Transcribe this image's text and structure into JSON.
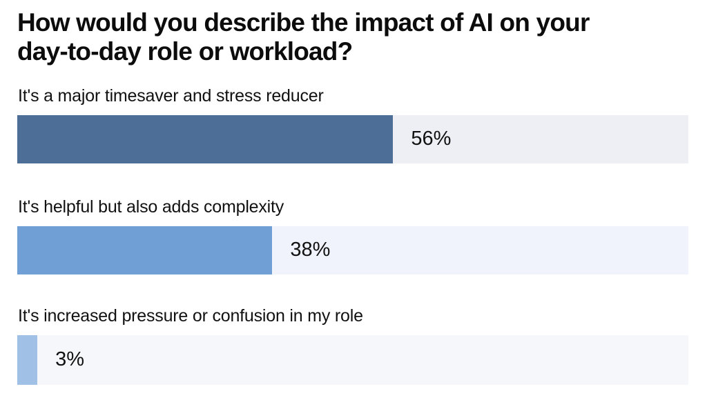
{
  "title": "How would you describe the impact of AI on your day-to-day role or workload?",
  "chart_data": {
    "type": "bar",
    "orientation": "horizontal",
    "title": "How would you describe the impact of AI on your day-to-day role or workload?",
    "categories": [
      "It's a major timesaver and stress reducer",
      "It's helpful but also adds complexity",
      "It's increased pressure or confusion in my role"
    ],
    "values": [
      56,
      38,
      3
    ],
    "value_labels": [
      "56%",
      "38%",
      "3%"
    ],
    "xlim": [
      0,
      100
    ],
    "grid": false,
    "legend": "none",
    "bar_colors": [
      "#4d6e96",
      "#6f9fd5",
      "#a0c1e5"
    ],
    "track_colors": [
      "#edeff4",
      "#f0f3fb",
      "#f6f7fb"
    ],
    "value_label_position": "right-of-bar-inside-track"
  },
  "colors": {
    "background": "#ffffff",
    "text": "#111111",
    "title_text": "#0c0c0c"
  }
}
